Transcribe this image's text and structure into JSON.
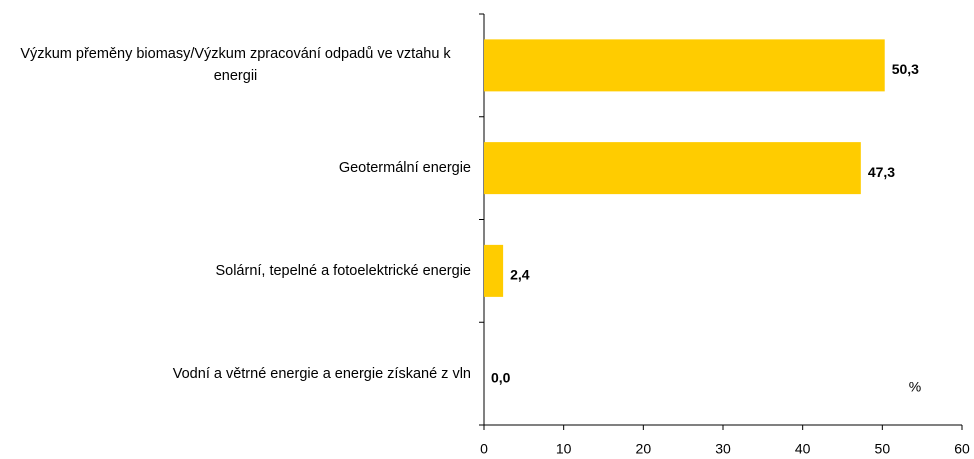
{
  "chart_data": {
    "type": "hbar",
    "categories": [
      "Výzkum přeměny biomasy/Výzkum zpracování odpadů ve vztahu k energii",
      "Geotermální energie",
      "Solární, tepelné a fotoelektrické energie",
      "Vodní a větrné energie a energie získané z vln"
    ],
    "values": [
      50.3,
      47.3,
      2.4,
      0.0
    ],
    "value_labels": [
      "50,3",
      "47,3",
      "2,4",
      "0,0"
    ],
    "color": "#ffcc00",
    "xlim": [
      0,
      60
    ],
    "xticks": [
      0,
      10,
      20,
      30,
      40,
      50,
      60
    ],
    "annotation": "%"
  }
}
